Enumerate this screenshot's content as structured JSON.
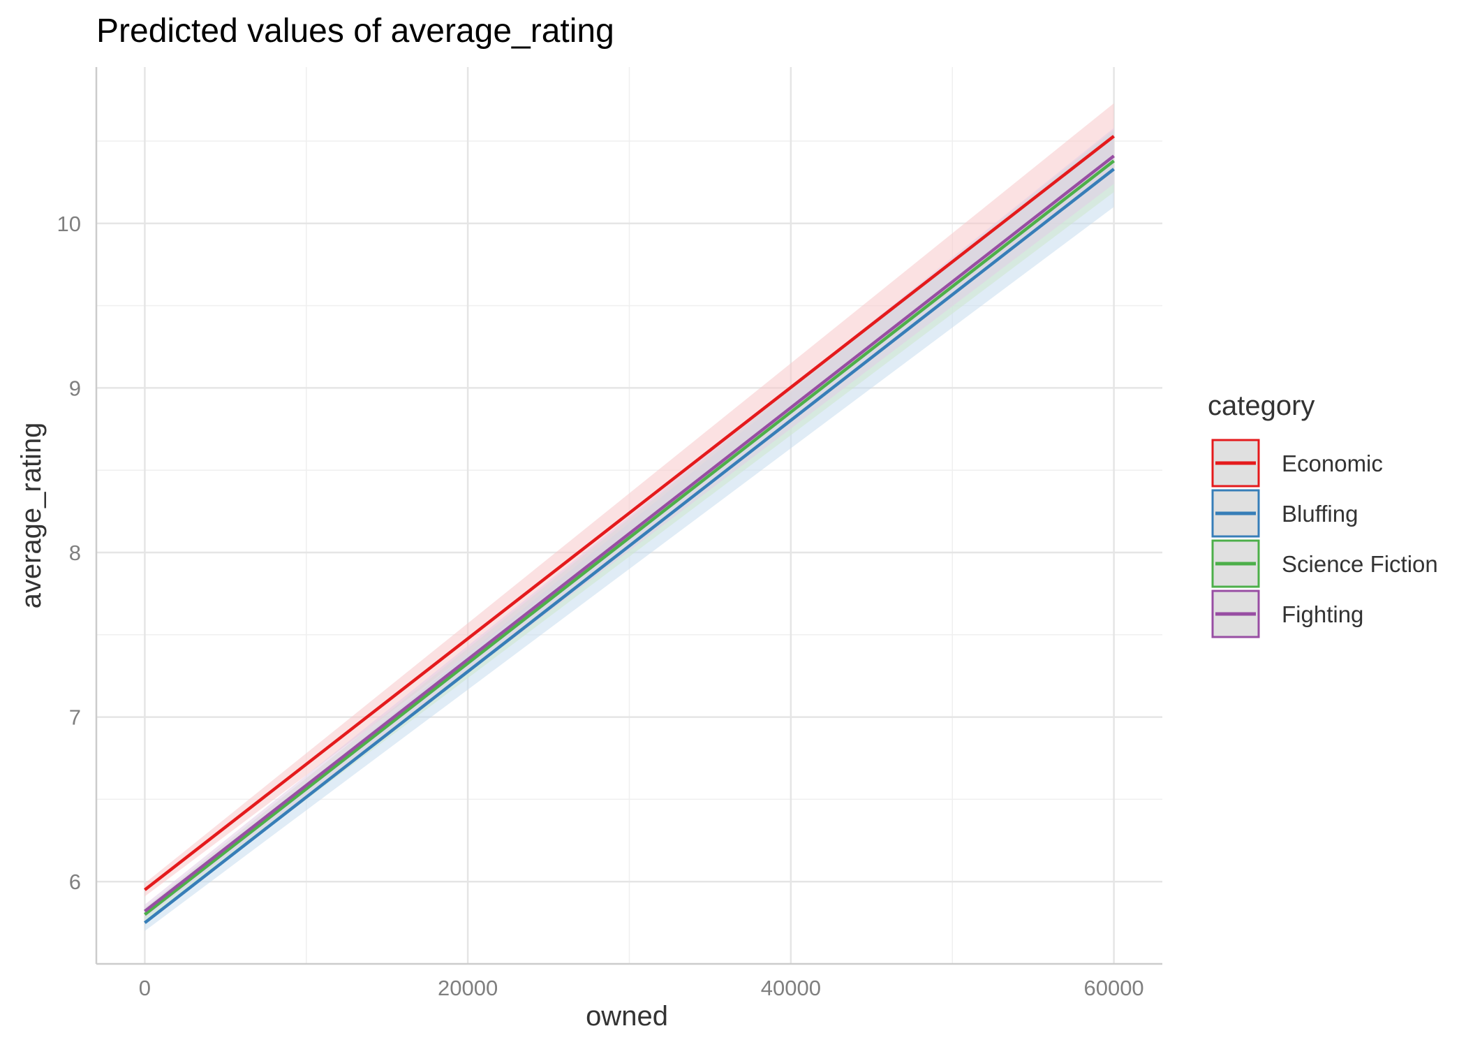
{
  "chart_data": {
    "type": "line",
    "title": "Predicted values of average_rating",
    "xlabel": "owned",
    "ylabel": "average_rating",
    "xlim": [
      -3000,
      63000
    ],
    "ylim": [
      5.5,
      10.95
    ],
    "x_ticks": [
      0,
      20000,
      40000,
      60000
    ],
    "x_tick_labels": [
      "0",
      "20000",
      "40000",
      "60000"
    ],
    "y_ticks": [
      6,
      7,
      8,
      9,
      10
    ],
    "y_tick_labels": [
      "6",
      "7",
      "8",
      "9",
      "10"
    ],
    "grid": true,
    "legend": {
      "title": "category",
      "position": "right"
    },
    "series": [
      {
        "name": "Economic",
        "color": "#e41a1c",
        "fill": "#f8c8cb",
        "x": [
          0,
          60000
        ],
        "y": [
          5.95,
          10.53
        ],
        "ci_low": [
          5.91,
          10.33
        ],
        "ci_high": [
          5.99,
          10.73
        ]
      },
      {
        "name": "Bluffing",
        "color": "#377eb8",
        "fill": "#c6dcee",
        "x": [
          0,
          60000
        ],
        "y": [
          5.75,
          10.33
        ],
        "ci_low": [
          5.7,
          10.1
        ],
        "ci_high": [
          5.8,
          10.56
        ]
      },
      {
        "name": "Science Fiction",
        "color": "#4daf4a",
        "fill": "#cde8cc",
        "x": [
          0,
          60000
        ],
        "y": [
          5.8,
          10.38
        ],
        "ci_low": [
          5.76,
          10.19
        ],
        "ci_high": [
          5.84,
          10.57
        ]
      },
      {
        "name": "Fighting",
        "color": "#984ea3",
        "fill": "#e2cde6",
        "x": [
          0,
          60000
        ],
        "y": [
          5.82,
          10.41
        ],
        "ci_low": [
          5.78,
          10.24
        ],
        "ci_high": [
          5.86,
          10.58
        ]
      }
    ]
  }
}
